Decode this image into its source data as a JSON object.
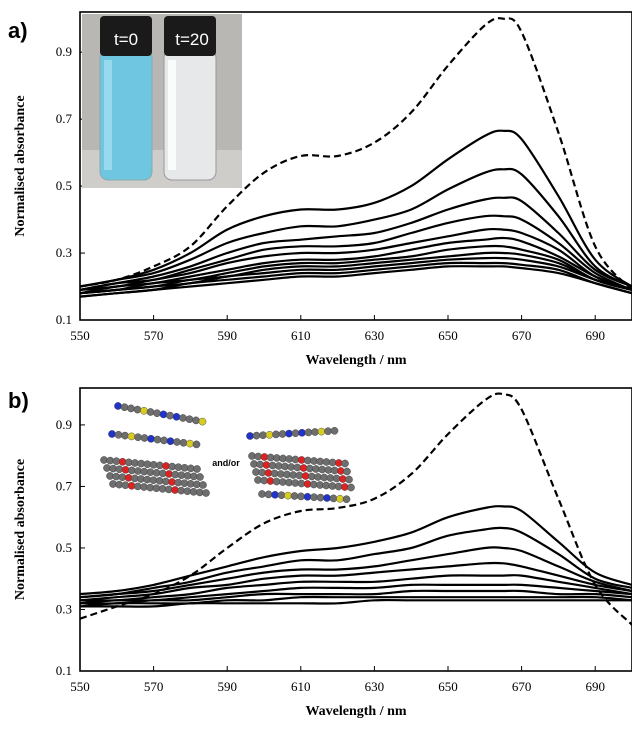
{
  "panels": [
    {
      "letter": "a)",
      "inset": {
        "labels": [
          "t=0",
          "t=20"
        ]
      },
      "chart_data": {
        "type": "line",
        "xlabel": "Wavelength / nm",
        "ylabel": "Normalised absorbance",
        "xlim": [
          550,
          700
        ],
        "ylim": [
          0.1,
          1.02
        ],
        "xticks": [
          550,
          570,
          590,
          610,
          630,
          650,
          670,
          690
        ],
        "yticks": [
          0.1,
          0.3,
          0.5,
          0.7,
          0.9
        ],
        "x": [
          550,
          560,
          570,
          580,
          590,
          600,
          610,
          620,
          630,
          640,
          650,
          660,
          665,
          670,
          680,
          690,
          700
        ],
        "series": [
          {
            "style": "dashed",
            "values": [
              0.2,
              0.22,
              0.26,
              0.32,
              0.44,
              0.54,
              0.59,
              0.59,
              0.63,
              0.72,
              0.86,
              0.98,
              1.0,
              0.96,
              0.66,
              0.32,
              0.19
            ]
          },
          {
            "style": "solid",
            "values": [
              0.2,
              0.22,
              0.25,
              0.3,
              0.37,
              0.41,
              0.43,
              0.43,
              0.45,
              0.5,
              0.58,
              0.65,
              0.665,
              0.64,
              0.47,
              0.28,
              0.2
            ]
          },
          {
            "style": "solid",
            "values": [
              0.2,
              0.22,
              0.24,
              0.28,
              0.33,
              0.36,
              0.38,
              0.38,
              0.4,
              0.43,
              0.49,
              0.54,
              0.55,
              0.535,
              0.41,
              0.26,
              0.2
            ]
          },
          {
            "style": "solid",
            "values": [
              0.19,
              0.21,
              0.23,
              0.26,
              0.3,
              0.33,
              0.34,
              0.35,
              0.36,
              0.39,
              0.43,
              0.46,
              0.465,
              0.455,
              0.36,
              0.25,
              0.2
            ]
          },
          {
            "style": "solid",
            "values": [
              0.19,
              0.21,
              0.22,
              0.25,
              0.28,
              0.31,
              0.32,
              0.32,
              0.33,
              0.36,
              0.39,
              0.41,
              0.41,
              0.4,
              0.33,
              0.24,
              0.19
            ]
          },
          {
            "style": "solid",
            "values": [
              0.19,
              0.2,
              0.22,
              0.24,
              0.27,
              0.29,
              0.3,
              0.3,
              0.31,
              0.33,
              0.35,
              0.37,
              0.37,
              0.36,
              0.31,
              0.23,
              0.19
            ]
          },
          {
            "style": "solid",
            "values": [
              0.18,
              0.2,
              0.21,
              0.23,
              0.25,
              0.27,
              0.28,
              0.28,
              0.29,
              0.31,
              0.33,
              0.34,
              0.345,
              0.335,
              0.29,
              0.23,
              0.19
            ]
          },
          {
            "style": "solid",
            "values": [
              0.18,
              0.19,
              0.21,
              0.22,
              0.24,
              0.26,
              0.27,
              0.27,
              0.28,
              0.29,
              0.31,
              0.32,
              0.32,
              0.31,
              0.28,
              0.22,
              0.19
            ]
          },
          {
            "style": "solid",
            "values": [
              0.18,
              0.19,
              0.2,
              0.22,
              0.23,
              0.25,
              0.26,
              0.26,
              0.27,
              0.28,
              0.29,
              0.3,
              0.3,
              0.295,
              0.27,
              0.22,
              0.19
            ]
          },
          {
            "style": "solid",
            "values": [
              0.18,
              0.19,
              0.2,
              0.21,
              0.23,
              0.24,
              0.25,
              0.25,
              0.26,
              0.27,
              0.28,
              0.285,
              0.285,
              0.28,
              0.26,
              0.22,
              0.19
            ]
          },
          {
            "style": "solid",
            "values": [
              0.17,
              0.18,
              0.19,
              0.21,
              0.22,
              0.23,
              0.24,
              0.24,
              0.25,
              0.26,
              0.27,
              0.27,
              0.27,
              0.265,
              0.25,
              0.21,
              0.18
            ]
          },
          {
            "style": "solid",
            "values": [
              0.17,
              0.18,
              0.19,
              0.2,
              0.21,
              0.22,
              0.23,
              0.23,
              0.24,
              0.25,
              0.26,
              0.26,
              0.26,
              0.255,
              0.24,
              0.21,
              0.18
            ]
          }
        ]
      }
    },
    {
      "letter": "b)",
      "inset": {
        "labels": [
          "and/or"
        ]
      },
      "chart_data": {
        "type": "line",
        "xlabel": "Wavelength / nm",
        "ylabel": "Normalised absorbance",
        "xlim": [
          550,
          700
        ],
        "ylim": [
          0.1,
          1.02
        ],
        "xticks": [
          550,
          570,
          590,
          610,
          630,
          650,
          670,
          690
        ],
        "yticks": [
          0.1,
          0.3,
          0.5,
          0.7,
          0.9
        ],
        "x": [
          550,
          560,
          570,
          580,
          590,
          600,
          610,
          620,
          630,
          640,
          650,
          660,
          665,
          670,
          680,
          690,
          700
        ],
        "series": [
          {
            "style": "dashed",
            "values": [
              0.27,
              0.31,
              0.35,
              0.41,
              0.5,
              0.58,
              0.62,
              0.63,
              0.66,
              0.74,
              0.87,
              0.98,
              1.0,
              0.95,
              0.66,
              0.38,
              0.25
            ]
          },
          {
            "style": "solid",
            "values": [
              0.35,
              0.36,
              0.38,
              0.41,
              0.44,
              0.47,
              0.49,
              0.5,
              0.52,
              0.55,
              0.6,
              0.63,
              0.635,
              0.62,
              0.52,
              0.42,
              0.38
            ]
          },
          {
            "style": "solid",
            "values": [
              0.34,
              0.35,
              0.37,
              0.39,
              0.42,
              0.44,
              0.46,
              0.46,
              0.48,
              0.5,
              0.54,
              0.56,
              0.565,
              0.55,
              0.48,
              0.4,
              0.37
            ]
          },
          {
            "style": "solid",
            "values": [
              0.34,
              0.35,
              0.36,
              0.38,
              0.4,
              0.42,
              0.43,
              0.43,
              0.44,
              0.46,
              0.48,
              0.5,
              0.5,
              0.49,
              0.44,
              0.39,
              0.36
            ]
          },
          {
            "style": "solid",
            "values": [
              0.33,
              0.34,
              0.35,
              0.37,
              0.38,
              0.4,
              0.41,
              0.41,
              0.42,
              0.43,
              0.44,
              0.45,
              0.45,
              0.44,
              0.41,
              0.38,
              0.36
            ]
          },
          {
            "style": "solid",
            "values": [
              0.33,
              0.33,
              0.34,
              0.35,
              0.37,
              0.38,
              0.39,
              0.39,
              0.39,
              0.4,
              0.41,
              0.41,
              0.41,
              0.41,
              0.39,
              0.37,
              0.35
            ]
          },
          {
            "style": "solid",
            "values": [
              0.32,
              0.33,
              0.33,
              0.34,
              0.35,
              0.36,
              0.37,
              0.37,
              0.37,
              0.38,
              0.38,
              0.38,
              0.38,
              0.38,
              0.37,
              0.36,
              0.35
            ]
          },
          {
            "style": "solid",
            "values": [
              0.32,
              0.32,
              0.33,
              0.33,
              0.34,
              0.35,
              0.35,
              0.35,
              0.35,
              0.36,
              0.36,
              0.36,
              0.36,
              0.36,
              0.35,
              0.35,
              0.34
            ]
          },
          {
            "style": "solid",
            "values": [
              0.31,
              0.32,
              0.32,
              0.32,
              0.33,
              0.33,
              0.34,
              0.34,
              0.34,
              0.34,
              0.34,
              0.34,
              0.34,
              0.34,
              0.34,
              0.34,
              0.33
            ]
          },
          {
            "style": "solid",
            "values": [
              0.31,
              0.31,
              0.31,
              0.32,
              0.32,
              0.32,
              0.32,
              0.32,
              0.33,
              0.33,
              0.33,
              0.33,
              0.33,
              0.33,
              0.33,
              0.33,
              0.33
            ]
          }
        ]
      }
    }
  ]
}
